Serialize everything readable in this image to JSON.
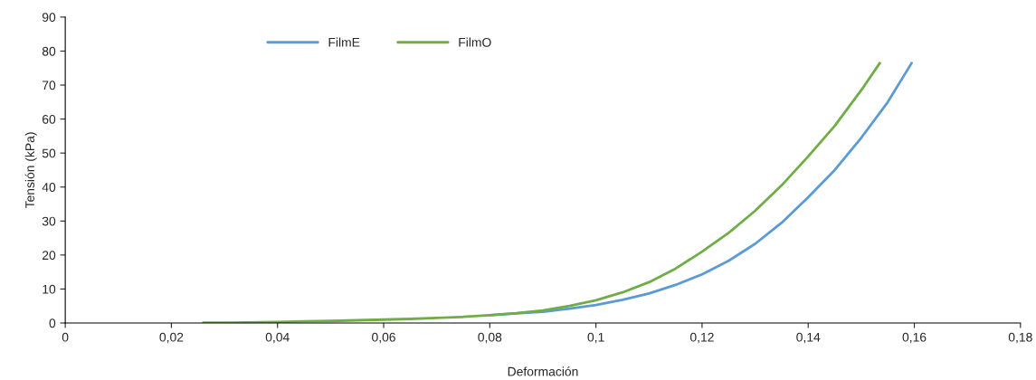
{
  "chart_data": {
    "type": "line",
    "xlabel": "Deformación",
    "ylabel": "Tensión (kPa)",
    "xlim": [
      0,
      0.18
    ],
    "xticks": [
      {
        "value": 0,
        "label": "0"
      },
      {
        "value": 0.02,
        "label": "0,02"
      },
      {
        "value": 0.04,
        "label": "0,04"
      },
      {
        "value": 0.06,
        "label": "0,06"
      },
      {
        "value": 0.08,
        "label": "0,08"
      },
      {
        "value": 0.1,
        "label": "0,1"
      },
      {
        "value": 0.12,
        "label": "0,12"
      },
      {
        "value": 0.14,
        "label": "0,14"
      },
      {
        "value": 0.16,
        "label": "0,16"
      },
      {
        "value": 0.18,
        "label": "0,18"
      }
    ],
    "ylim": [
      0,
      90
    ],
    "yticks": [
      0,
      10,
      20,
      30,
      40,
      50,
      60,
      70,
      80,
      90
    ],
    "grid": false,
    "legend": "top left",
    "marker": "none",
    "line_style": "solid",
    "series": [
      {
        "name": "FilmE",
        "color": "#5b9bd5",
        "x": [
          0.08,
          0.085,
          0.09,
          0.095,
          0.1,
          0.105,
          0.11,
          0.115,
          0.12,
          0.125,
          0.13,
          0.135,
          0.14,
          0.145,
          0.15,
          0.155,
          0.1595
        ],
        "values": [
          2.3,
          2.8,
          3.3,
          4.2,
          5.3,
          6.8,
          8.7,
          11.2,
          14.3,
          18.3,
          23.3,
          29.5,
          37,
          45,
          54.5,
          65,
          76.5
        ]
      },
      {
        "name": "FilmO",
        "color": "#70ad47",
        "x": [
          0.026,
          0.03,
          0.04,
          0.045,
          0.05,
          0.055,
          0.06,
          0.065,
          0.07,
          0.075,
          0.08,
          0.085,
          0.09,
          0.095,
          0.1,
          0.105,
          0.11,
          0.115,
          0.12,
          0.125,
          0.13,
          0.135,
          0.14,
          0.145,
          0.15,
          0.1535
        ],
        "values": [
          0.1,
          0.1,
          0.3,
          0.5,
          0.6,
          0.8,
          1.0,
          1.2,
          1.5,
          1.8,
          2.3,
          2.9,
          3.7,
          5.0,
          6.7,
          9.0,
          12,
          16,
          21,
          26.5,
          33,
          40.5,
          49,
          58,
          68.5,
          76.5
        ]
      }
    ]
  }
}
